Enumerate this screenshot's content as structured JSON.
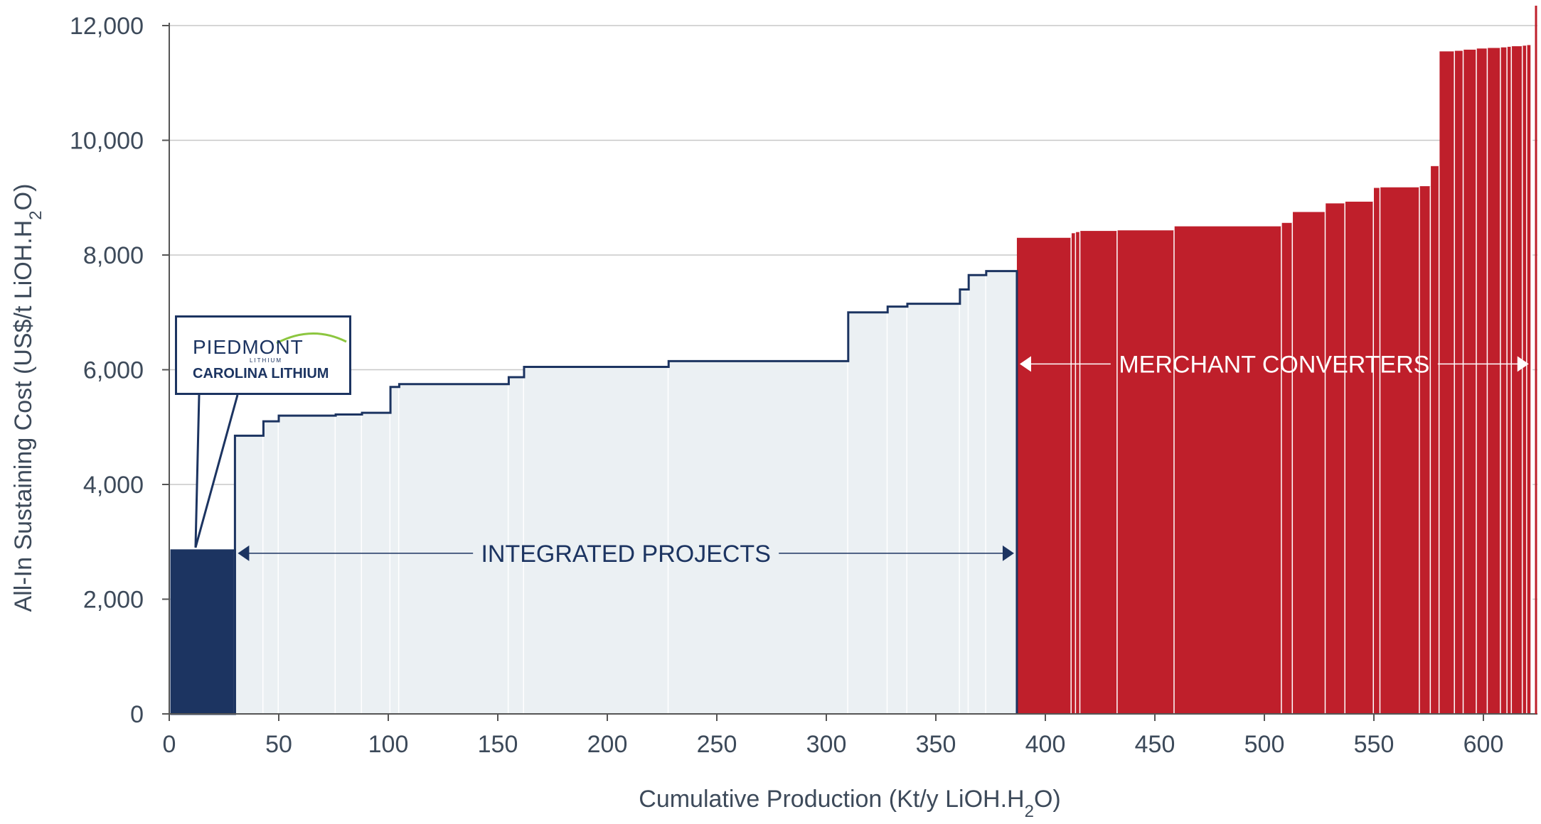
{
  "colors": {
    "piedmont": "#1c3461",
    "integrated_fill": "#ebf0f3",
    "integrated_outline": "#1c3461",
    "merchant": "#bf1f2b",
    "grid": "#c8c8c8",
    "axis_text": "#3d4a5a",
    "brand_arc": "#8cc63f"
  },
  "callout": {
    "brand": "PIEDMONT",
    "brand_sub": "LITHIUM",
    "project": "CAROLINA LITHIUM"
  },
  "chart_data": {
    "type": "bar",
    "subtype": "cost-curve",
    "xlabel": "Cumulative Production (Kt/y LiOH.H2O)",
    "ylabel": "All-In Sustaining Cost (US$/t LiOH.H2O)",
    "xlim": [
      0,
      625
    ],
    "ylim": [
      0,
      12000
    ],
    "grid": "horizontal",
    "x_ticks": [
      "0",
      "50",
      "100",
      "150",
      "200",
      "250",
      "300",
      "350",
      "400",
      "450",
      "500",
      "550",
      "600"
    ],
    "y_ticks": [
      "0",
      "2,000",
      "4,000",
      "6,000",
      "8,000",
      "10,000",
      "12,000"
    ],
    "x_tick_values": [
      0,
      50,
      100,
      150,
      200,
      250,
      300,
      350,
      400,
      450,
      500,
      550,
      600
    ],
    "y_tick_values": [
      0,
      2000,
      4000,
      6000,
      8000,
      10000,
      12000
    ],
    "series": [
      {
        "name": "Carolina Lithium",
        "group": "piedmont",
        "bars": [
          {
            "x0": 1,
            "x1": 30,
            "y": 2850
          }
        ]
      },
      {
        "name": "INTEGRATED PROJECTS",
        "group": "integrated",
        "bars": [
          {
            "x0": 30,
            "x1": 43,
            "y": 4850
          },
          {
            "x0": 43,
            "x1": 50,
            "y": 5100
          },
          {
            "x0": 50,
            "x1": 76,
            "y": 5200
          },
          {
            "x0": 76,
            "x1": 88,
            "y": 5220
          },
          {
            "x0": 88,
            "x1": 101,
            "y": 5250
          },
          {
            "x0": 101,
            "x1": 105,
            "y": 5700
          },
          {
            "x0": 105,
            "x1": 155,
            "y": 5750
          },
          {
            "x0": 155,
            "x1": 162,
            "y": 5870
          },
          {
            "x0": 162,
            "x1": 228,
            "y": 6050
          },
          {
            "x0": 228,
            "x1": 310,
            "y": 6150
          },
          {
            "x0": 310,
            "x1": 328,
            "y": 7000
          },
          {
            "x0": 328,
            "x1": 337,
            "y": 7100
          },
          {
            "x0": 337,
            "x1": 361,
            "y": 7150
          },
          {
            "x0": 361,
            "x1": 365,
            "y": 7400
          },
          {
            "x0": 365,
            "x1": 373,
            "y": 7650
          },
          {
            "x0": 373,
            "x1": 387,
            "y": 7720
          }
        ]
      },
      {
        "name": "MERCHANT CONVERTERS",
        "group": "merchant",
        "bars": [
          {
            "x0": 387,
            "x1": 412,
            "y": 8300
          },
          {
            "x0": 412,
            "x1": 414,
            "y": 8380
          },
          {
            "x0": 414,
            "x1": 416,
            "y": 8400
          },
          {
            "x0": 416,
            "x1": 433,
            "y": 8420
          },
          {
            "x0": 433,
            "x1": 459,
            "y": 8430
          },
          {
            "x0": 459,
            "x1": 508,
            "y": 8500
          },
          {
            "x0": 508,
            "x1": 513,
            "y": 8560
          },
          {
            "x0": 513,
            "x1": 528,
            "y": 8750
          },
          {
            "x0": 528,
            "x1": 537,
            "y": 8900
          },
          {
            "x0": 537,
            "x1": 550,
            "y": 8930
          },
          {
            "x0": 550,
            "x1": 553,
            "y": 9170
          },
          {
            "x0": 553,
            "x1": 571,
            "y": 9180
          },
          {
            "x0": 571,
            "x1": 576,
            "y": 9200
          },
          {
            "x0": 576,
            "x1": 580,
            "y": 9550
          },
          {
            "x0": 580,
            "x1": 587,
            "y": 11550
          },
          {
            "x0": 587,
            "x1": 591,
            "y": 11560
          },
          {
            "x0": 591,
            "x1": 597,
            "y": 11580
          },
          {
            "x0": 597,
            "x1": 602,
            "y": 11600
          },
          {
            "x0": 602,
            "x1": 608,
            "y": 11610
          },
          {
            "x0": 608,
            "x1": 611,
            "y": 11620
          },
          {
            "x0": 611,
            "x1": 613,
            "y": 11630
          },
          {
            "x0": 613,
            "x1": 618,
            "y": 11640
          },
          {
            "x0": 618,
            "x1": 620,
            "y": 11650
          },
          {
            "x0": 620,
            "x1": 622,
            "y": 11660
          }
        ]
      }
    ],
    "annotations": [
      {
        "text": "INTEGRATED PROJECTS",
        "x0": 30,
        "x1": 387,
        "y": 2800,
        "color": "#1c3461"
      },
      {
        "text": "MERCHANT CONVERTERS",
        "x0": 387,
        "x1": 622,
        "y": 6100,
        "color": "#ffffff"
      }
    ]
  }
}
